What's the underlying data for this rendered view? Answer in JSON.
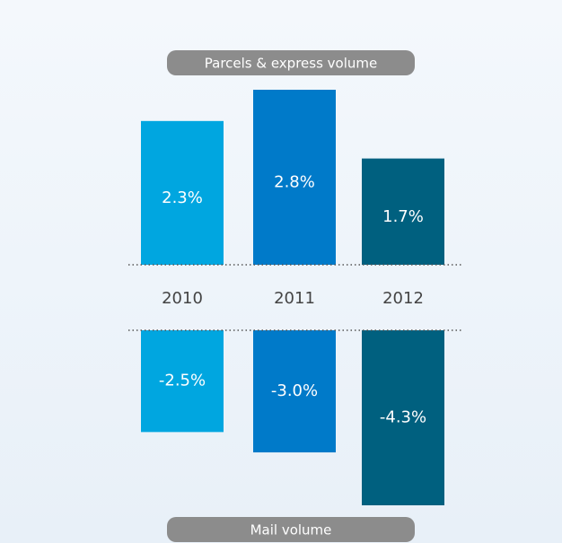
{
  "chart_data": {
    "type": "bar",
    "categories": [
      "2010",
      "2011",
      "2012"
    ],
    "colors": [
      "#00a6e0",
      "#007ac9",
      "#00607f"
    ],
    "series": [
      {
        "name": "Parcels & express volume",
        "values": [
          2.3,
          2.8,
          1.7
        ],
        "value_labels": [
          "2.3%",
          "2.8%",
          "1.7%"
        ]
      },
      {
        "name": "Mail volume",
        "values": [
          -2.5,
          -3.0,
          -4.3
        ],
        "value_labels": [
          "-2.5%",
          "-3.0%",
          "-4.3%"
        ]
      }
    ]
  }
}
